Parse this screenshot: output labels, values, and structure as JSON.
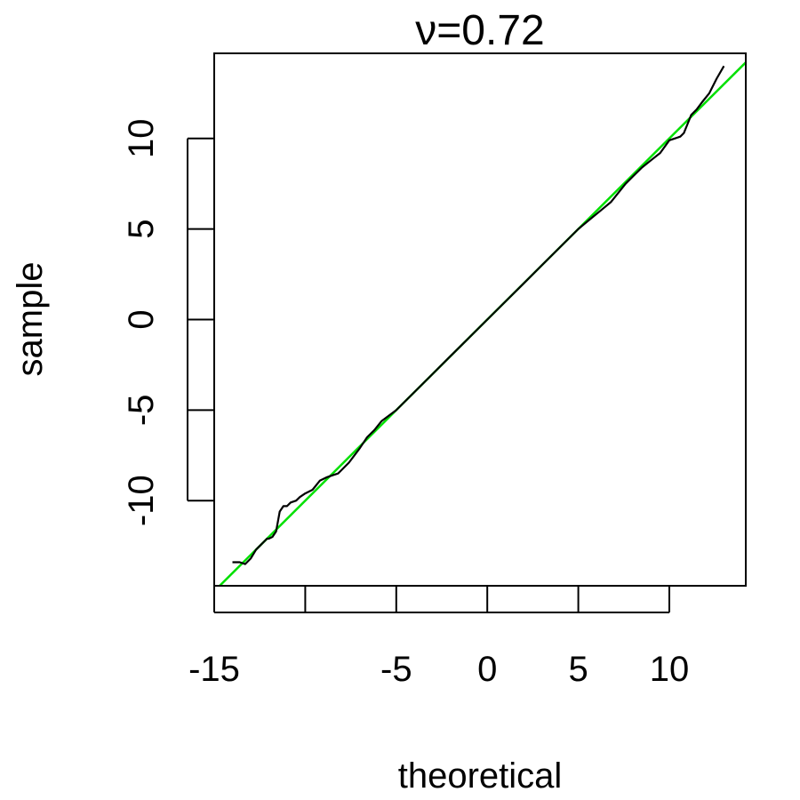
{
  "chart_data": {
    "type": "line",
    "title": "ν=0.72",
    "xlabel": "theoretical",
    "ylabel": "sample",
    "xlim": [
      -15,
      14.2
    ],
    "ylim": [
      -14.7,
      14.7
    ],
    "x_ticks": [
      -15,
      -10,
      -5,
      0,
      5,
      10
    ],
    "x_tick_labels": [
      "-15",
      "",
      "-5",
      "0",
      "5",
      "10"
    ],
    "y_ticks": [
      -10,
      -5,
      0,
      5,
      10
    ],
    "y_tick_labels": [
      "-10",
      "-5",
      "0",
      "5",
      "10"
    ],
    "grid": false,
    "legend": "none",
    "reference_line": {
      "slope": 1,
      "intercept": 0,
      "color": "#00e000"
    },
    "series": [
      {
        "color": "#000000",
        "x": [
          -14.0,
          -13.6,
          -13.3,
          -13.0,
          -12.7,
          -12.5,
          -12.3,
          -12.1,
          -12.0,
          -11.8,
          -11.6,
          -11.4,
          -11.2,
          -11.0,
          -10.8,
          -10.5,
          -10.3,
          -10.0,
          -9.6,
          -9.2,
          -8.8,
          -8.5,
          -8.2,
          -8.0,
          -7.6,
          -7.3,
          -7.0,
          -6.6,
          -6.2,
          -5.8,
          -5.4,
          -5.0,
          -4.0,
          -3.0,
          -2.0,
          -1.0,
          0.0,
          1.0,
          2.0,
          3.0,
          4.0,
          5.0,
          5.6,
          6.2,
          6.8,
          7.2,
          7.6,
          8.0,
          8.5,
          9.0,
          9.5,
          10.0,
          10.3,
          10.6,
          10.8,
          11.0,
          11.2,
          11.5,
          11.8,
          12.2,
          12.6,
          13.0
        ],
        "y": [
          -13.4,
          -13.4,
          -13.5,
          -13.2,
          -12.7,
          -12.5,
          -12.3,
          -12.1,
          -12.1,
          -12.0,
          -11.7,
          -10.6,
          -10.3,
          -10.3,
          -10.1,
          -10.0,
          -9.8,
          -9.6,
          -9.4,
          -8.9,
          -8.7,
          -8.6,
          -8.5,
          -8.3,
          -7.9,
          -7.5,
          -7.1,
          -6.5,
          -6.1,
          -5.6,
          -5.3,
          -5.0,
          -4.0,
          -3.0,
          -2.0,
          -1.0,
          0.0,
          1.0,
          2.0,
          3.0,
          4.0,
          5.0,
          5.5,
          6.0,
          6.5,
          7.0,
          7.5,
          7.9,
          8.4,
          8.8,
          9.2,
          9.9,
          10.0,
          10.1,
          10.3,
          10.8,
          11.3,
          11.6,
          12.0,
          12.5,
          13.3,
          14.0
        ]
      }
    ]
  }
}
